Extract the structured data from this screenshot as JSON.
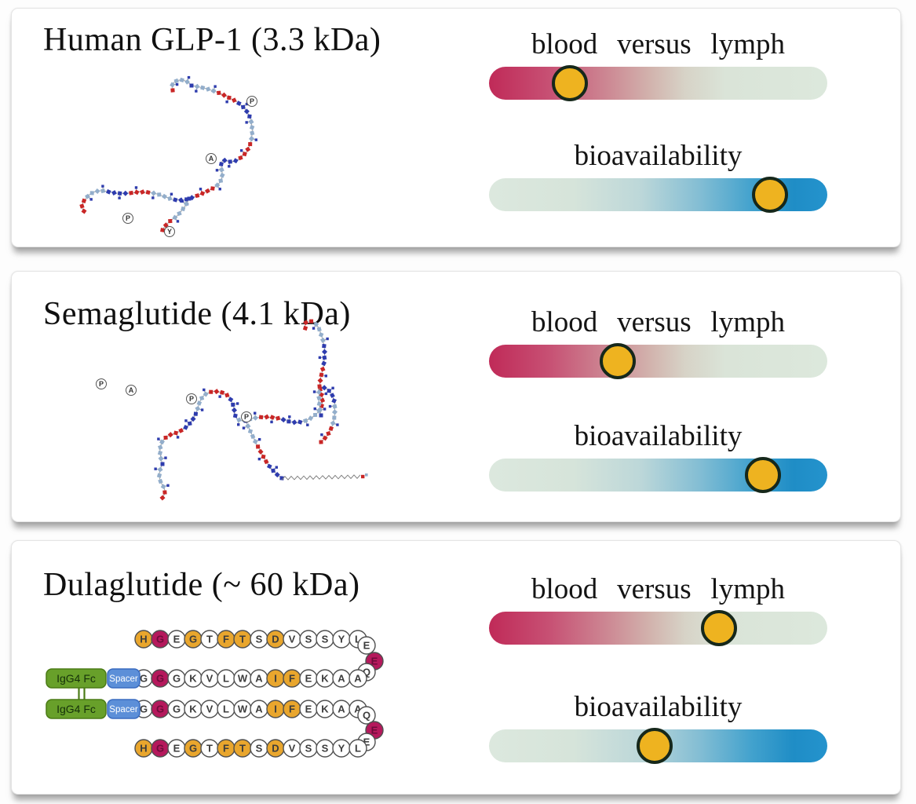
{
  "figure": {
    "panels": [
      {
        "id": "human-glp1",
        "title": "Human GLP-1 (3.3 kDa)",
        "sliders": [
          {
            "label": "blood versus lymph",
            "kind": "blood-vs-lymph",
            "marker_pct": 24
          },
          {
            "label": "bioavailability",
            "kind": "bioavailability",
            "marker_pct": 83
          }
        ],
        "structure_annotations": [
          "P",
          "A",
          "P",
          "Y"
        ]
      },
      {
        "id": "semaglutide",
        "title": "Semaglutide (4.1 kDa)",
        "sliders": [
          {
            "label": "blood versus lymph",
            "kind": "blood-vs-lymph",
            "marker_pct": 38
          },
          {
            "label": "bioavailability",
            "kind": "bioavailability",
            "marker_pct": 81
          }
        ],
        "structure_annotations": [
          "P",
          "A",
          "P",
          "P"
        ]
      },
      {
        "id": "dulaglutide",
        "title": "Dulaglutide (~ 60 kDa)",
        "sliders": [
          {
            "label": "blood versus lymph",
            "kind": "blood-vs-lymph",
            "marker_pct": 68
          },
          {
            "label": "bioavailability",
            "kind": "bioavailability",
            "marker_pct": 49
          }
        ],
        "structure_annotations": []
      }
    ],
    "dulaglutide_diagram": {
      "fc_label": "IgG4 Fc",
      "spacer_label": "Spacer",
      "glp1_row": [
        [
          "H",
          "gold"
        ],
        [
          "G",
          "crimson"
        ],
        [
          "E",
          "white"
        ],
        [
          "G",
          "gold"
        ],
        [
          "T",
          "white"
        ],
        [
          "F",
          "gold"
        ],
        [
          "T",
          "gold"
        ],
        [
          "S",
          "white"
        ],
        [
          "D",
          "gold"
        ],
        [
          "V",
          "white"
        ],
        [
          "S",
          "white"
        ],
        [
          "S",
          "white"
        ],
        [
          "Y",
          "white"
        ],
        [
          "L",
          "white"
        ]
      ],
      "linker_row": [
        [
          "G",
          "white"
        ],
        [
          "G",
          "crimson"
        ],
        [
          "G",
          "white"
        ],
        [
          "K",
          "white"
        ],
        [
          "V",
          "white"
        ],
        [
          "L",
          "white"
        ],
        [
          "W",
          "white"
        ],
        [
          "A",
          "white"
        ],
        [
          "I",
          "gold"
        ],
        [
          "F",
          "gold"
        ],
        [
          "E",
          "white"
        ],
        [
          "K",
          "white"
        ],
        [
          "A",
          "white"
        ],
        [
          "A",
          "white"
        ]
      ],
      "bend_top": [
        [
          "E",
          "white"
        ],
        [
          "E",
          "crimson"
        ],
        [
          "Q",
          "white"
        ]
      ],
      "bend_bottom": [
        [
          "Q",
          "white"
        ],
        [
          "E",
          "crimson"
        ],
        [
          "E",
          "white"
        ]
      ]
    },
    "colors": {
      "bar_crimson": "#c02a58",
      "bar_sage": "#dce8dc",
      "bar_blue": "#1f8dc6",
      "marker_fill": "#eeb320",
      "marker_border": "#16281b",
      "residue_gold": "#e9a62d",
      "residue_crimson": "#b5195c",
      "fc_green": "#68a02a",
      "spacer_blue": "#5c8fd8",
      "bead_blue": "#2e3cae",
      "bead_red": "#c92626",
      "bead_steel": "#93aecb"
    }
  }
}
